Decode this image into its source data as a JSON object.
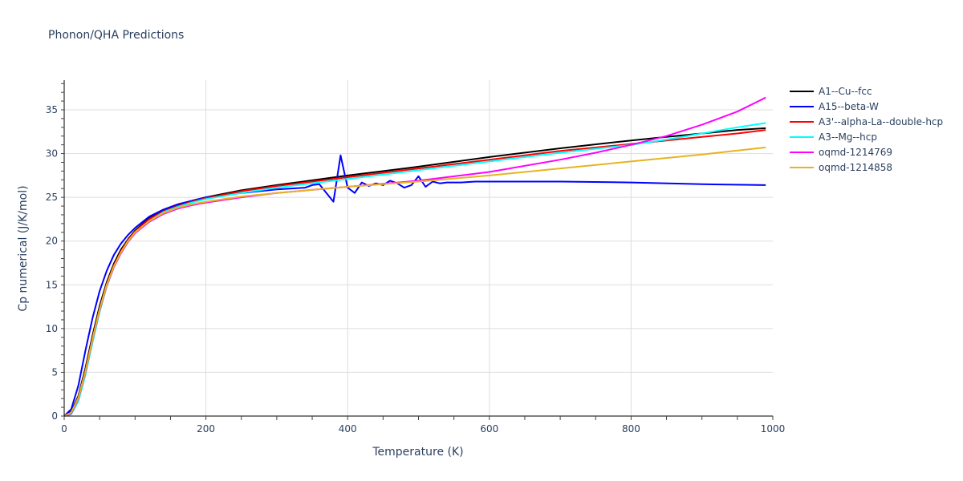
{
  "chart_data": {
    "type": "line",
    "title": "Phonon/QHA Predictions",
    "xlabel": "Temperature (K)",
    "ylabel": "Cp numerical (J/K/mol)",
    "xlim": [
      0,
      1000
    ],
    "ylim": [
      0,
      38.5
    ],
    "x_ticks": [
      0,
      200,
      400,
      600,
      800,
      1000
    ],
    "y_ticks": [
      0,
      5,
      10,
      15,
      20,
      25,
      30,
      35
    ],
    "grid": true,
    "legend_position": "right",
    "series": [
      {
        "name": "A1--Cu--fcc",
        "color": "#000000",
        "x": [
          0,
          10,
          20,
          30,
          40,
          50,
          60,
          70,
          80,
          90,
          100,
          120,
          140,
          160,
          180,
          200,
          250,
          300,
          400,
          500,
          600,
          700,
          800,
          850,
          900,
          950,
          990
        ],
        "y": [
          0,
          0.5,
          2.3,
          5.5,
          9.2,
          12.6,
          15.3,
          17.4,
          19.0,
          20.2,
          21.2,
          22.6,
          23.5,
          24.1,
          24.6,
          25.0,
          25.8,
          26.4,
          27.5,
          28.5,
          29.6,
          30.6,
          31.5,
          31.9,
          32.3,
          32.7,
          32.9
        ]
      },
      {
        "name": "A15--beta-W",
        "color": "#0000ff",
        "x": [
          0,
          10,
          20,
          30,
          40,
          50,
          60,
          70,
          80,
          90,
          100,
          120,
          140,
          160,
          180,
          200,
          250,
          300,
          340,
          350,
          360,
          370,
          380,
          390,
          400,
          410,
          420,
          430,
          440,
          450,
          460,
          470,
          480,
          490,
          500,
          510,
          520,
          530,
          540,
          560,
          580,
          600,
          620,
          640,
          700,
          800,
          900,
          990
        ],
        "y": [
          0,
          0.8,
          3.5,
          7.5,
          11.2,
          14.3,
          16.6,
          18.4,
          19.7,
          20.7,
          21.5,
          22.8,
          23.6,
          24.2,
          24.6,
          25.0,
          25.5,
          25.9,
          26.1,
          26.4,
          26.5,
          25.5,
          24.5,
          29.8,
          26.1,
          25.5,
          26.7,
          26.3,
          26.6,
          26.4,
          26.9,
          26.6,
          26.1,
          26.4,
          27.4,
          26.2,
          26.8,
          26.6,
          26.7,
          26.7,
          26.8,
          26.8,
          26.8,
          26.8,
          26.8,
          26.7,
          26.5,
          26.4
        ]
      },
      {
        "name": "A3'--alpha-La--double-hcp",
        "color": "#ff0000",
        "x": [
          0,
          10,
          20,
          30,
          40,
          50,
          60,
          70,
          80,
          90,
          100,
          120,
          140,
          160,
          180,
          200,
          250,
          300,
          400,
          500,
          600,
          700,
          800,
          850,
          900,
          950,
          990
        ],
        "y": [
          0,
          0.4,
          2.1,
          5.2,
          8.9,
          12.3,
          15.1,
          17.2,
          18.8,
          20.1,
          21.1,
          22.5,
          23.4,
          24.0,
          24.5,
          24.9,
          25.7,
          26.3,
          27.3,
          28.3,
          29.3,
          30.3,
          31.1,
          31.5,
          31.9,
          32.3,
          32.7
        ]
      },
      {
        "name": "A3--Mg--hcp",
        "color": "#00ffff",
        "x": [
          0,
          10,
          20,
          30,
          40,
          50,
          60,
          70,
          80,
          90,
          100,
          120,
          140,
          160,
          180,
          200,
          250,
          300,
          400,
          500,
          600,
          700,
          800,
          850,
          900,
          950,
          990
        ],
        "y": [
          0,
          0.2,
          1.7,
          4.7,
          8.4,
          11.9,
          14.8,
          17.0,
          18.6,
          19.9,
          20.9,
          22.3,
          23.3,
          23.9,
          24.4,
          24.8,
          25.5,
          26.1,
          27.1,
          28.1,
          29.1,
          30.1,
          31.0,
          31.6,
          32.3,
          33.0,
          33.5
        ]
      },
      {
        "name": "oqmd-1214769",
        "color": "#ff00ff",
        "x": [
          0,
          10,
          20,
          30,
          40,
          50,
          60,
          70,
          80,
          90,
          100,
          120,
          140,
          160,
          180,
          200,
          250,
          300,
          400,
          500,
          600,
          700,
          750,
          800,
          850,
          900,
          950,
          990
        ],
        "y": [
          0,
          0.3,
          2.0,
          5.0,
          8.7,
          12.1,
          14.9,
          17.0,
          18.6,
          19.9,
          20.9,
          22.2,
          23.1,
          23.7,
          24.1,
          24.4,
          25.0,
          25.5,
          26.2,
          26.9,
          27.9,
          29.3,
          30.1,
          31.0,
          32.0,
          33.3,
          34.8,
          36.4
        ]
      },
      {
        "name": "oqmd-1214858",
        "color": "#e6b422",
        "x": [
          0,
          10,
          20,
          30,
          40,
          50,
          60,
          70,
          80,
          90,
          100,
          120,
          140,
          160,
          180,
          200,
          250,
          300,
          400,
          500,
          600,
          700,
          800,
          900,
          990
        ],
        "y": [
          0,
          0.4,
          2.1,
          5.1,
          8.8,
          12.2,
          15.0,
          17.1,
          18.7,
          20.0,
          21.0,
          22.3,
          23.2,
          23.8,
          24.2,
          24.5,
          25.1,
          25.5,
          26.2,
          26.8,
          27.5,
          28.3,
          29.1,
          29.9,
          30.7
        ]
      }
    ]
  }
}
